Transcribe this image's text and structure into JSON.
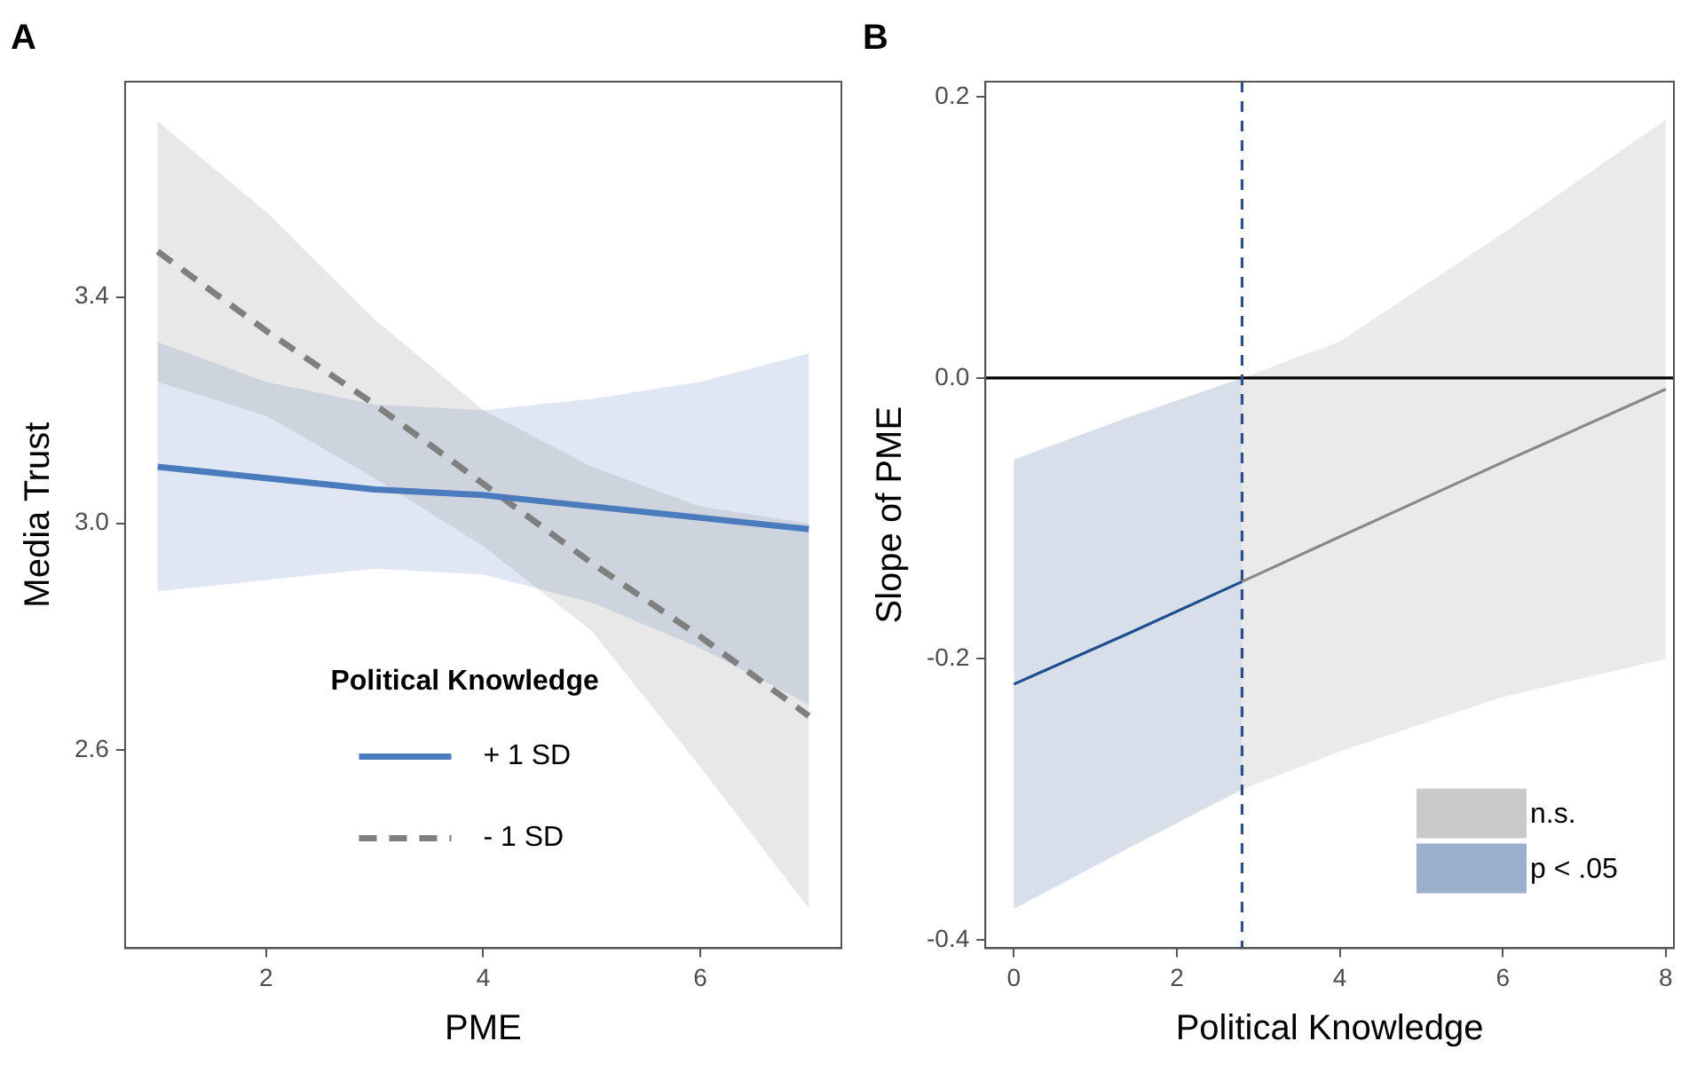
{
  "chart_data": [
    {
      "type": "line",
      "title": "A",
      "xlabel": "PME",
      "ylabel": "Media Trust",
      "legend_title": "Political Knowledge",
      "legend": "bottom",
      "grid": false,
      "marker": "none",
      "xlim": [
        0.7,
        7.3
      ],
      "xticks": [
        2,
        4,
        6
      ],
      "ylim": [
        2.25,
        3.78
      ],
      "yticks": [
        {
          "value": 2.6,
          "label": "2.6"
        },
        {
          "value": 3.0,
          "label": "3.0"
        },
        {
          "value": 3.4,
          "label": "3.4"
        }
      ],
      "x": [
        1,
        2,
        3,
        4,
        5,
        6,
        7
      ],
      "series": [
        {
          "name": "+ 1 SD",
          "color": "#4a7bbd",
          "line_style": "solid",
          "values": [
            3.1,
            3.08,
            3.06,
            3.05,
            3.03,
            3.01,
            2.99
          ],
          "lower": [
            2.88,
            2.9,
            2.92,
            2.91,
            2.86,
            2.78,
            2.68
          ],
          "upper": [
            3.32,
            3.25,
            3.21,
            3.2,
            3.22,
            3.25,
            3.3
          ]
        },
        {
          "name": "- 1 SD",
          "color": "#7f7f7f",
          "line_style": "dashed",
          "values": [
            3.48,
            3.34,
            3.21,
            3.07,
            2.93,
            2.8,
            2.66
          ],
          "lower": [
            3.25,
            3.19,
            3.08,
            2.96,
            2.81,
            2.57,
            2.32
          ],
          "upper": [
            3.71,
            3.55,
            3.36,
            3.2,
            3.1,
            3.03,
            3.0
          ]
        }
      ]
    },
    {
      "type": "line",
      "title": "B",
      "xlabel": "Political Knowledge",
      "ylabel": "Slope of PME",
      "legend": "bottom right",
      "grid": false,
      "marker": "none",
      "xlim": [
        -0.35,
        8.1
      ],
      "xticks": [
        0,
        2,
        4,
        6,
        8
      ],
      "ylim": [
        -0.406,
        0.211
      ],
      "yticks": [
        {
          "value": -0.4,
          "label": "-0.4"
        },
        {
          "value": -0.2,
          "label": "-0.2"
        },
        {
          "value": 0,
          "label": "0.0"
        },
        {
          "value": 0.2,
          "label": "0.2"
        }
      ],
      "ref_lines": [
        {
          "axis": "y",
          "value": 0,
          "color": "#000000",
          "line_style": "solid"
        },
        {
          "axis": "x",
          "value": 2.8,
          "color": "#2c4f86",
          "line_style": "dashed"
        }
      ],
      "series": [
        {
          "name": "n.s.",
          "color": "#888888",
          "line_style": "solid",
          "x": [
            2.8,
            4,
            6,
            8
          ],
          "values": [
            -0.145,
            -0.113,
            -0.06,
            -0.008
          ],
          "lower": [
            -0.293,
            -0.266,
            -0.227,
            -0.2
          ],
          "upper": [
            0.0,
            0.026,
            0.103,
            0.184
          ]
        },
        {
          "name": "p < .05",
          "color": "#1f4e8c",
          "line_style": "solid",
          "x": [
            0,
            1.4,
            2.8
          ],
          "values": [
            -0.218,
            -0.182,
            -0.145
          ],
          "lower": [
            -0.378,
            -0.335,
            -0.293
          ],
          "upper": [
            -0.058,
            -0.028,
            0.0
          ]
        }
      ]
    }
  ]
}
